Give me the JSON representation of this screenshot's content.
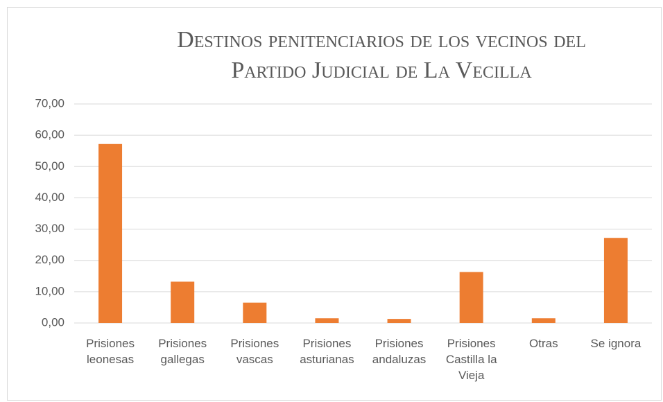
{
  "chart_data": {
    "type": "bar",
    "title": "Destinos penitenciarios de los vecinos del Partido Judicial de La Vecilla",
    "categories": [
      "Prisiones leonesas",
      "Prisiones gallegas",
      "Prisiones vascas",
      "Prisiones asturianas",
      "Prisiones andaluzas",
      "Prisiones Castilla la Vieja",
      "Otras",
      "Se ignora"
    ],
    "values": [
      57.2,
      13.2,
      6.5,
      1.5,
      1.3,
      16.3,
      1.5,
      27.2
    ],
    "color": "#ed7d31",
    "ylim": [
      0,
      70
    ],
    "yticks": [
      {
        "value": 0,
        "label": "0,00"
      },
      {
        "value": 10,
        "label": "10,00"
      },
      {
        "value": 20,
        "label": "20,00"
      },
      {
        "value": 30,
        "label": "30,00"
      },
      {
        "value": 40,
        "label": "40,00"
      },
      {
        "value": 50,
        "label": "50,00"
      },
      {
        "value": 60,
        "label": "60,00"
      },
      {
        "value": 70,
        "label": "70,00"
      }
    ],
    "grid": true
  }
}
